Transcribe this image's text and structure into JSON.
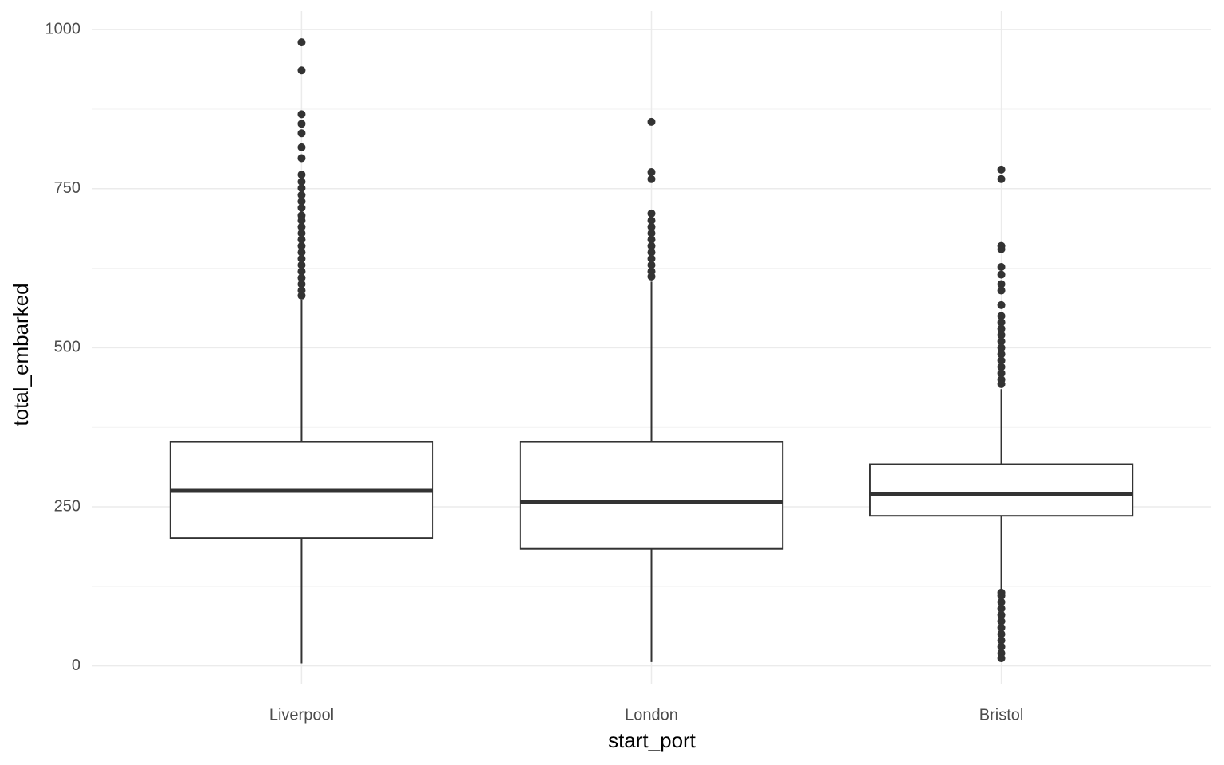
{
  "chart_data": {
    "type": "box",
    "x_label": "start_port",
    "y_label": "total_embarked",
    "categories": [
      "Liverpool",
      "London",
      "Bristol"
    ],
    "boxes": [
      {
        "min": 4,
        "q1": 201,
        "median": 275,
        "q3": 352,
        "max": 575,
        "outliers": [
          980,
          936,
          867,
          852,
          837,
          815,
          798,
          772,
          761,
          751,
          740,
          730,
          720,
          708,
          700,
          690,
          680,
          670,
          660,
          650,
          640,
          630,
          620,
          610,
          600,
          590,
          582
        ]
      },
      {
        "min": 6,
        "q1": 184,
        "median": 257,
        "q3": 352,
        "max": 604,
        "outliers": [
          855,
          776,
          765,
          711,
          700,
          690,
          680,
          670,
          660,
          650,
          640,
          630,
          620,
          612
        ]
      },
      {
        "min": 120,
        "q1": 236,
        "median": 270,
        "q3": 317,
        "max": 435,
        "outliers": [
          780,
          765,
          660,
          655,
          627,
          615,
          600,
          590,
          567,
          550,
          540,
          530,
          520,
          510,
          500,
          490,
          480,
          470,
          460,
          450,
          443,
          115,
          110,
          100,
          90,
          80,
          70,
          60,
          50,
          40,
          30,
          20,
          12
        ]
      }
    ],
    "color": "#333333",
    "ylim": [
      -28,
      1029
    ],
    "yticks": [
      0,
      250,
      500,
      750,
      1000
    ],
    "grid": true
  }
}
